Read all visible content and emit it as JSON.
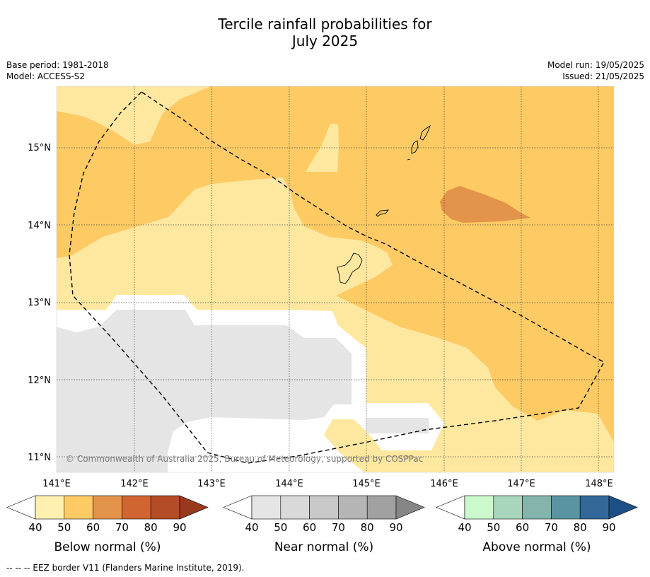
{
  "title_line1": "Tercile rainfall probabilities for",
  "title_line2": "July 2025",
  "meta": {
    "base_period": "Base period: 1981-2018",
    "model": "Model: ACCESS-S2",
    "model_run": "Model run: 19/05/2025",
    "issued": "Issued: 21/05/2025"
  },
  "map": {
    "lon_labels": [
      "141°E",
      "142°E",
      "143°E",
      "144°E",
      "145°E",
      "146°E",
      "147°E",
      "148°E"
    ],
    "lat_labels": [
      "15°N",
      "14°N",
      "13°N",
      "12°N",
      "11°N"
    ],
    "copyright": "© Commonwealth of Australia 2025, Bureau of Meteorology, supported by COSPPac",
    "colors": {
      "below_40_50": "#fee8a0",
      "below_50_60": "#fdca64",
      "below_60_70": "#e3944a",
      "near_normal": "#e5e5e5",
      "no_dominant": "#ffffff",
      "land_outline": "#000000",
      "eez_border": "#000000"
    }
  },
  "colorbars": [
    {
      "label": "Below normal (%)",
      "ticks": [
        "40",
        "50",
        "60",
        "70",
        "80",
        "90"
      ],
      "colors": [
        "#fff0b0",
        "#fdca64",
        "#e3944a",
        "#d06532",
        "#b44d27",
        "#98391d"
      ]
    },
    {
      "label": "Near normal (%)",
      "ticks": [
        "40",
        "50",
        "60",
        "70",
        "80",
        "90"
      ],
      "colors": [
        "#e5e5e5",
        "#d9d9d9",
        "#c8c8c8",
        "#b5b5b5",
        "#a1a1a1",
        "#868686"
      ]
    },
    {
      "label": "Above normal (%)",
      "ticks": [
        "40",
        "50",
        "60",
        "70",
        "80",
        "90"
      ],
      "colors": [
        "#ccf9cc",
        "#a8d6bc",
        "#84b5ad",
        "#5994a0",
        "#336899",
        "#1c4f86"
      ]
    }
  ],
  "footer": "--  --  -- EEZ border V11 (Flanders Marine Institute, 2019)."
}
